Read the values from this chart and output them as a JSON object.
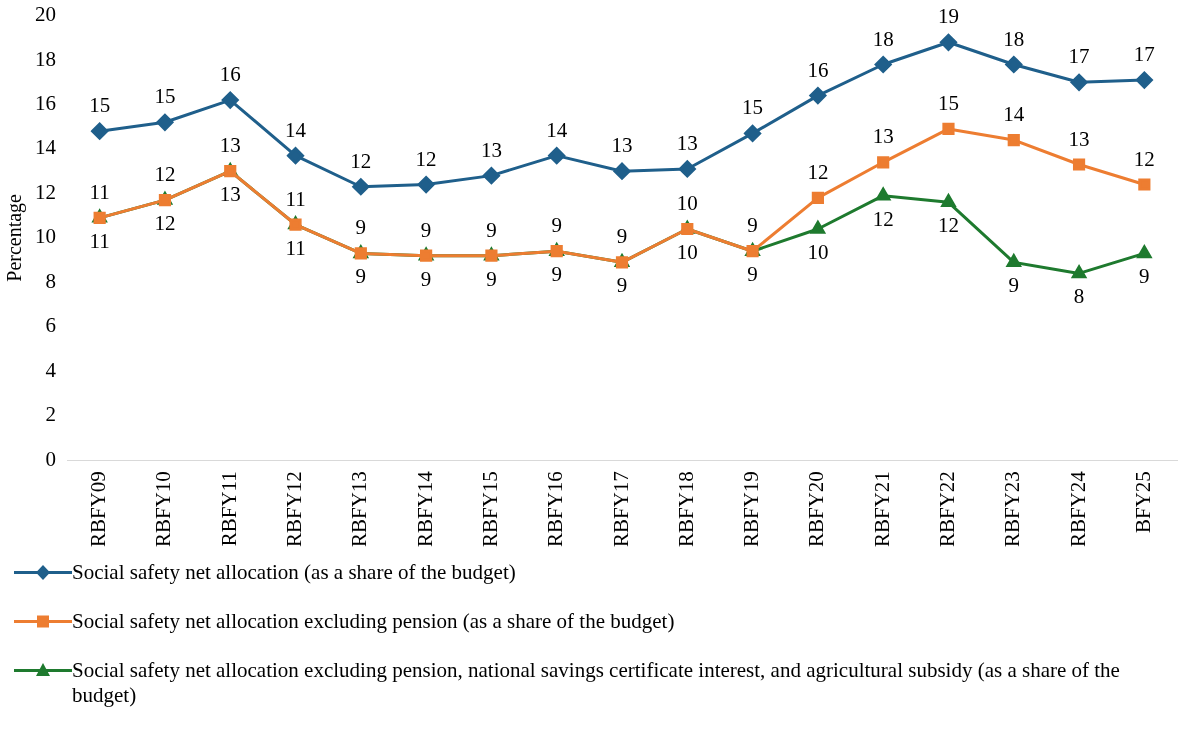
{
  "chart_data": {
    "type": "line",
    "ylabel": "Percentage",
    "categories": [
      "RBFY09",
      "RBFY10",
      "RBFY11",
      "RBFY12",
      "RBFY13",
      "RBFY14",
      "RBFY15",
      "RBFY16",
      "RBFY17",
      "RBFY18",
      "RBFY19",
      "RBFY20",
      "RBFY21",
      "RBFY22",
      "RBFY23",
      "RBFY24",
      "BFY25"
    ],
    "series": [
      {
        "name": "Social safety net allocation (as a share of the budget)",
        "color": "#1f5f8b",
        "marker": "diamond",
        "values": [
          14.8,
          15.2,
          16.2,
          13.7,
          12.3,
          12.4,
          12.8,
          13.7,
          13.0,
          13.1,
          14.7,
          16.4,
          17.8,
          18.8,
          17.8,
          17.0,
          17.1
        ],
        "value_labels": [
          "15",
          "15",
          "16",
          "14",
          "12",
          "12",
          "13",
          "14",
          "13",
          "13",
          "15",
          "16",
          "18",
          "19",
          "18",
          "17",
          "17"
        ]
      },
      {
        "name": "Social safety net allocation excluding pension (as a share of the budget)",
        "color": "#ed7d31",
        "marker": "square",
        "values": [
          10.9,
          11.7,
          13.0,
          10.6,
          9.3,
          9.2,
          9.2,
          9.4,
          8.9,
          10.4,
          9.4,
          11.8,
          13.4,
          14.9,
          14.4,
          13.3,
          12.4
        ],
        "value_labels": [
          "11",
          "12",
          "13",
          "11",
          "9",
          "9",
          "9",
          "9",
          "9",
          "10",
          "9",
          "12",
          "13",
          "15",
          "14",
          "13",
          "12"
        ]
      },
      {
        "name": "Social safety net allocation excluding pension, national savings certificate interest, and agricultural subsidy (as a share of the budget)",
        "color": "#1e7a2e",
        "marker": "triangle",
        "values": [
          10.9,
          11.7,
          13.0,
          10.6,
          9.3,
          9.2,
          9.2,
          9.4,
          8.9,
          10.4,
          9.4,
          10.4,
          11.9,
          11.6,
          8.9,
          8.4,
          9.3
        ],
        "value_labels": [
          "11",
          "12",
          "13",
          "11",
          "9",
          "9",
          "9",
          "9",
          "9",
          "10",
          "9",
          "10",
          "12",
          "12",
          "9",
          "8",
          "9"
        ]
      }
    ],
    "ylim": [
      0,
      20
    ],
    "yticks": [
      0,
      2,
      4,
      6,
      8,
      10,
      12,
      14,
      16,
      18,
      20
    ],
    "grid": false,
    "legend": "bottom",
    "line_style": "solid"
  }
}
